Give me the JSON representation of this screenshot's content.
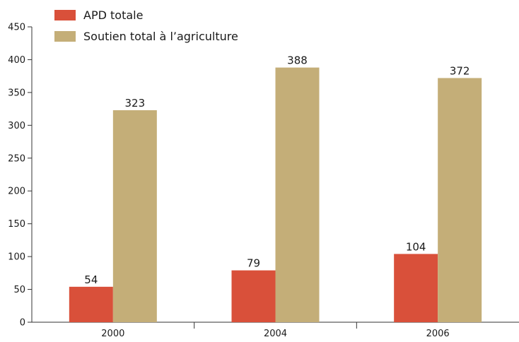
{
  "chart_data": {
    "type": "bar",
    "categories": [
      "2000",
      "2004",
      "2006"
    ],
    "series": [
      {
        "name": "APD totale",
        "values": [
          54,
          79,
          104
        ],
        "color": "#d9503a"
      },
      {
        "name": "Soutien total à l’agriculture",
        "values": [
          323,
          388,
          372
        ],
        "color": "#c4ae78"
      }
    ],
    "title": "",
    "xlabel": "",
    "ylabel": "",
    "ylim": [
      0,
      450
    ],
    "yticks": [
      0,
      50,
      100,
      150,
      200,
      250,
      300,
      350,
      400,
      450
    ],
    "grid": false,
    "legend_position": "top-left",
    "data_labels": true
  }
}
